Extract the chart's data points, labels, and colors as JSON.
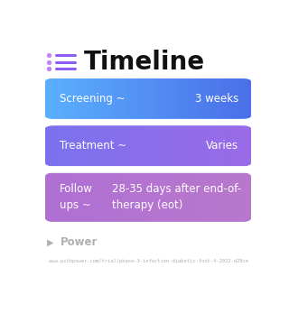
{
  "title": "Timeline",
  "title_fontsize": 20,
  "title_color": "#111111",
  "title_icon_color": "#8B5CF6",
  "background_color": "#ffffff",
  "rows": [
    {
      "label": "Screening ~",
      "value": "3 weeks",
      "color_left": "#5AB0FF",
      "color_right": "#4B6FE8",
      "text_color": "#ffffff",
      "layout": "two_col"
    },
    {
      "label": "Treatment ~",
      "value": "Varies",
      "color_left": "#7B72EE",
      "color_right": "#9B6BE8",
      "text_color": "#ffffff",
      "layout": "two_col"
    },
    {
      "label": "Follow\nups ~",
      "value": "28-35 days after end-of-\ntherapy (eot)",
      "color_left": "#B070D4",
      "color_right": "#B878CC",
      "text_color": "#ffffff",
      "layout": "follow_up"
    }
  ],
  "footer_text": "Power",
  "footer_url": "www.withpower.com/trial/phase-3-infection-diabetic-foot-4-2022-d28ce",
  "footer_color": "#b0b0b0"
}
